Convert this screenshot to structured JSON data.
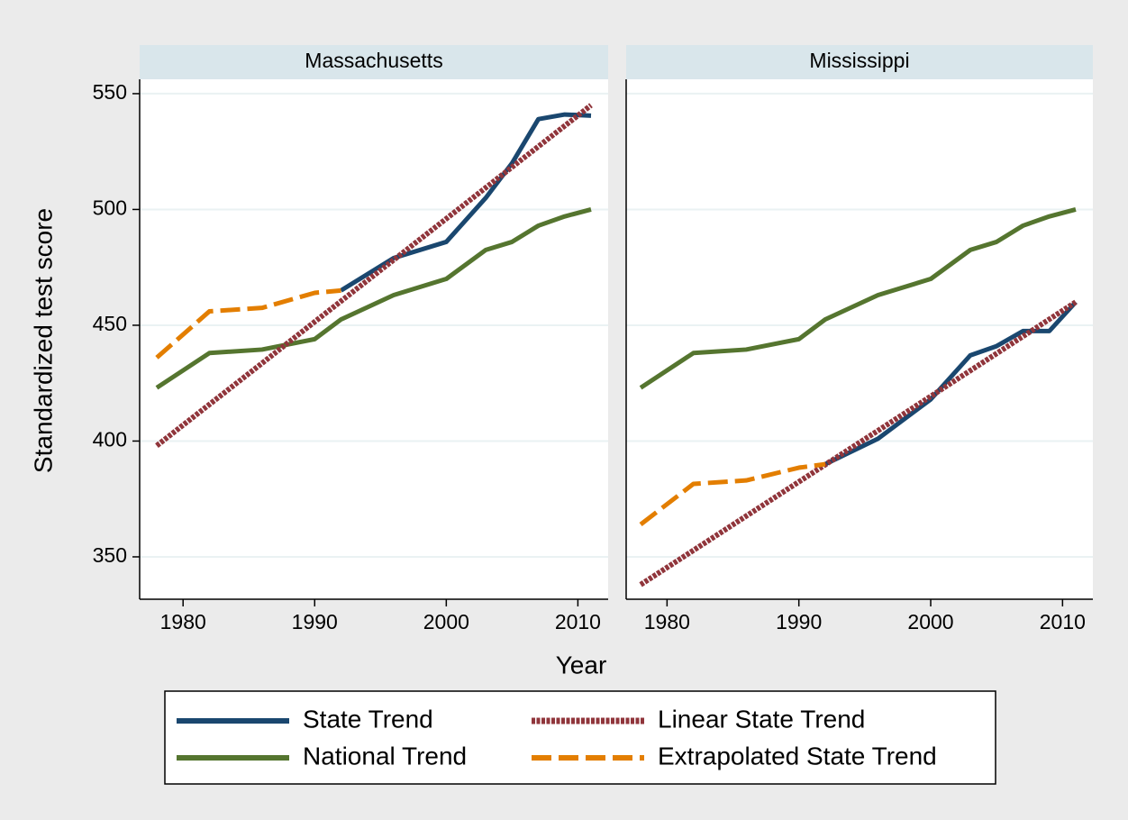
{
  "xlabel": "Year",
  "ylabel": "Standardized test score",
  "legend": "bottom",
  "chart_data": [
    {
      "type": "line",
      "title": "Massachusetts",
      "x": [
        1978,
        1982,
        1986,
        1990,
        1992,
        1996,
        2000,
        2003,
        2005,
        2007,
        2009,
        2011
      ],
      "xlim": [
        1976.7,
        2012.3
      ],
      "xticks": [
        1980,
        1990,
        2000,
        2010
      ],
      "ylim": [
        331.7,
        556.2
      ],
      "yticks": [
        350,
        400,
        450,
        500,
        550
      ],
      "grid": true,
      "series": [
        {
          "name": "State Trend",
          "color": "#1a476f",
          "dash": "solid",
          "values": [
            null,
            null,
            null,
            null,
            465,
            479,
            486,
            505,
            520,
            539,
            541,
            540.5
          ]
        },
        {
          "name": "National Trend",
          "color": "#55752f",
          "dash": "solid",
          "values": [
            423,
            438,
            439.5,
            444,
            452.5,
            463,
            470,
            482.5,
            486,
            493,
            497,
            500
          ]
        },
        {
          "name": "Linear State Trend",
          "color": "#90353b",
          "dash": "dotted",
          "values": [
            398,
            415.8,
            433.6,
            451.5,
            460.4,
            478.2,
            496,
            509.4,
            518.3,
            527.2,
            536.1,
            545
          ]
        },
        {
          "name": "Extrapolated State Trend",
          "color": "#e37e00",
          "dash": "dashed",
          "values": [
            436,
            456,
            457.5,
            464,
            465,
            null,
            null,
            null,
            null,
            null,
            null,
            null
          ]
        }
      ]
    },
    {
      "type": "line",
      "title": "Mississippi",
      "x": [
        1978,
        1982,
        1986,
        1990,
        1992,
        1996,
        2000,
        2003,
        2005,
        2007,
        2009,
        2011
      ],
      "xlim": [
        1976.9,
        2012.3
      ],
      "xticks": [
        1980,
        1990,
        2000,
        2010
      ],
      "ylim": [
        331.7,
        556.2
      ],
      "yticks": [
        350,
        400,
        450,
        500,
        550
      ],
      "grid": true,
      "series": [
        {
          "name": "State Trend",
          "color": "#1a476f",
          "dash": "solid",
          "values": [
            null,
            null,
            null,
            null,
            390,
            401,
            418,
            437,
            441,
            447.5,
            447.5,
            460
          ]
        },
        {
          "name": "National Trend",
          "color": "#55752f",
          "dash": "solid",
          "values": [
            423,
            438,
            439.5,
            444,
            452.5,
            463,
            470,
            482.5,
            486,
            493,
            497,
            500
          ]
        },
        {
          "name": "Linear State Trend",
          "color": "#90353b",
          "dash": "dotted",
          "values": [
            338,
            352.8,
            367.6,
            382.4,
            389.8,
            404.5,
            419.3,
            430.4,
            437.8,
            445.2,
            452.6,
            460
          ]
        },
        {
          "name": "Extrapolated State Trend",
          "color": "#e37e00",
          "dash": "dashed",
          "values": [
            364,
            381.5,
            383,
            388.5,
            390,
            null,
            null,
            null,
            null,
            null,
            null,
            null
          ]
        }
      ]
    }
  ]
}
